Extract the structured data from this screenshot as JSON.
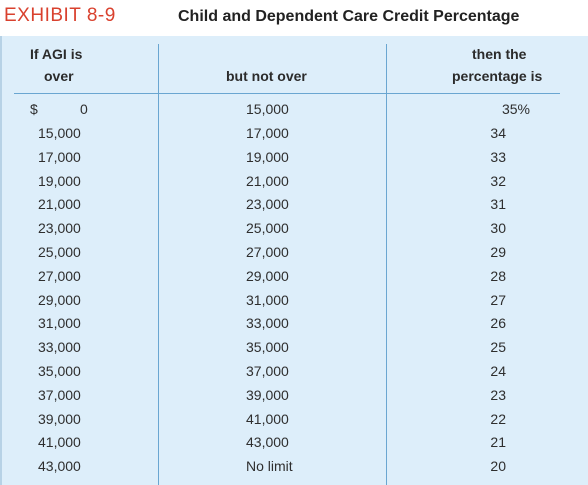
{
  "exhibit_label": "EXHIBIT 8-9",
  "title": "Child and Dependent Care Credit Percentage",
  "headers": {
    "col1_line1": "If AGI is",
    "col1_line2": "over",
    "col2": "but not over",
    "col3_line1": "then the",
    "col3_line2": "percentage is"
  },
  "first_row": {
    "currency": "$",
    "over": "0",
    "not_over": "15,000",
    "percentage": "35%"
  },
  "rows": [
    {
      "over": "15,000",
      "not_over": "17,000",
      "percentage": "34"
    },
    {
      "over": "17,000",
      "not_over": "19,000",
      "percentage": "33"
    },
    {
      "over": "19,000",
      "not_over": "21,000",
      "percentage": "32"
    },
    {
      "over": "21,000",
      "not_over": "23,000",
      "percentage": "31"
    },
    {
      "over": "23,000",
      "not_over": "25,000",
      "percentage": "30"
    },
    {
      "over": "25,000",
      "not_over": "27,000",
      "percentage": "29"
    },
    {
      "over": "27,000",
      "not_over": "29,000",
      "percentage": "28"
    },
    {
      "over": "29,000",
      "not_over": "31,000",
      "percentage": "27"
    },
    {
      "over": "31,000",
      "not_over": "33,000",
      "percentage": "26"
    },
    {
      "over": "33,000",
      "not_over": "35,000",
      "percentage": "25"
    },
    {
      "over": "35,000",
      "not_over": "37,000",
      "percentage": "24"
    },
    {
      "over": "37,000",
      "not_over": "39,000",
      "percentage": "23"
    },
    {
      "over": "39,000",
      "not_over": "41,000",
      "percentage": "22"
    },
    {
      "over": "41,000",
      "not_over": "43,000",
      "percentage": "21"
    },
    {
      "over": "43,000",
      "not_over": "No limit",
      "percentage": "20"
    }
  ],
  "colors": {
    "exhibit_accent": "#d9412e",
    "table_background": "#ddeefa",
    "rule_lines": "#6aa6d1"
  }
}
